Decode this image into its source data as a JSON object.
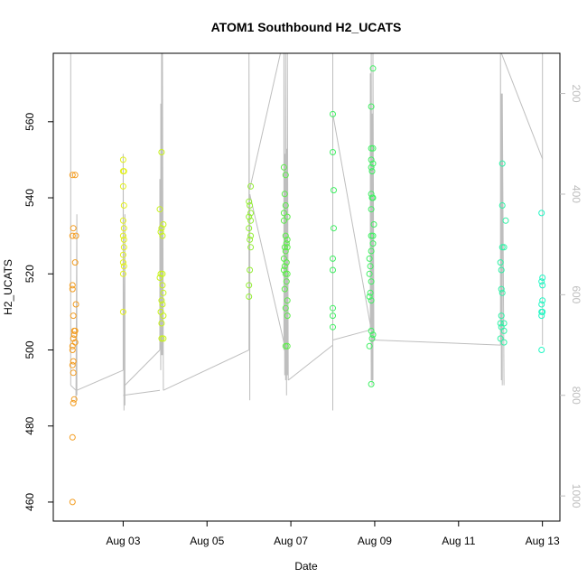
{
  "chart_data": {
    "type": "scatter",
    "title": "ATOM1 Southbound H2_UCATS",
    "xlabel": "Date",
    "ylabel": "H2_UCATS",
    "xlim": [
      "2016-08-01T08:00",
      "2016-08-13T10:00"
    ],
    "ylim": [
      455,
      578
    ],
    "y2lim": [
      1050,
      120
    ],
    "x_ticks": [
      {
        "date": "2016-08-03T00:00",
        "label": "Aug 03"
      },
      {
        "date": "2016-08-05T00:00",
        "label": "Aug 05"
      },
      {
        "date": "2016-08-07T00:00",
        "label": "Aug 07"
      },
      {
        "date": "2016-08-09T00:00",
        "label": "Aug 09"
      },
      {
        "date": "2016-08-11T00:00",
        "label": "Aug 11"
      },
      {
        "date": "2016-08-13T00:00",
        "label": "Aug 13"
      }
    ],
    "y_ticks": [
      460,
      480,
      500,
      520,
      540,
      560
    ],
    "y2_ticks": [
      200,
      400,
      600,
      800,
      1000
    ],
    "grid": false,
    "colors": {
      "pressure_line": "#bebebe",
      "axis": "#000000",
      "right_axis": "#bdbdbd",
      "flight1": "#f39c1f",
      "flight2": "#e3f21a",
      "flight3": "#c7f21a",
      "flight4": "#95ee36",
      "flight5": "#5cee4a",
      "flight6": "#3ff062",
      "flight7": "#2ff2a6",
      "flight8": "#1ff7c3"
    },
    "series": [
      {
        "color_key": "flight1",
        "points": [
          [
            "2016-08-01T19:00",
            546
          ],
          [
            "2016-08-01T20:30",
            546
          ],
          [
            "2016-08-01T19:30",
            532
          ],
          [
            "2016-08-01T19:00",
            530
          ],
          [
            "2016-08-01T21:00",
            530
          ],
          [
            "2016-08-01T20:30",
            523
          ],
          [
            "2016-08-01T19:00",
            517
          ],
          [
            "2016-08-01T19:00",
            516
          ],
          [
            "2016-08-01T21:00",
            512
          ],
          [
            "2016-08-01T19:30",
            509
          ],
          [
            "2016-08-01T20:00",
            505
          ],
          [
            "2016-08-01T20:30",
            505
          ],
          [
            "2016-08-01T20:00",
            504
          ],
          [
            "2016-08-01T19:30",
            503
          ],
          [
            "2016-08-01T20:30",
            502
          ],
          [
            "2016-08-01T19:00",
            501
          ],
          [
            "2016-08-01T19:00",
            500
          ],
          [
            "2016-08-01T19:30",
            497
          ],
          [
            "2016-08-01T19:00",
            496
          ],
          [
            "2016-08-01T19:30",
            494
          ],
          [
            "2016-08-01T20:00",
            487
          ],
          [
            "2016-08-01T19:30",
            486
          ],
          [
            "2016-08-01T19:00",
            477
          ],
          [
            "2016-08-01T19:00",
            460
          ]
        ]
      },
      {
        "color_key": "flight2",
        "points": [
          [
            "2016-08-03T00:00",
            550
          ],
          [
            "2016-08-03T00:30",
            547
          ],
          [
            "2016-08-03T00:00",
            547
          ],
          [
            "2016-08-03T00:00",
            543
          ],
          [
            "2016-08-03T00:30",
            538
          ],
          [
            "2016-08-03T00:00",
            534
          ],
          [
            "2016-08-03T00:30",
            532
          ],
          [
            "2016-08-03T00:00",
            530
          ],
          [
            "2016-08-03T00:30",
            529
          ],
          [
            "2016-08-03T00:30",
            527
          ],
          [
            "2016-08-03T00:00",
            525
          ],
          [
            "2016-08-03T00:00",
            523
          ],
          [
            "2016-08-03T00:30",
            522
          ],
          [
            "2016-08-03T00:00",
            520
          ],
          [
            "2016-08-03T00:00",
            510
          ]
        ]
      },
      {
        "color_key": "flight3",
        "points": [
          [
            "2016-08-03T22:00",
            552
          ],
          [
            "2016-08-03T21:00",
            537
          ],
          [
            "2016-08-03T23:00",
            533
          ],
          [
            "2016-08-03T22:00",
            532
          ],
          [
            "2016-08-03T21:30",
            531
          ],
          [
            "2016-08-03T22:30",
            530
          ],
          [
            "2016-08-03T21:30",
            520
          ],
          [
            "2016-08-03T22:30",
            520
          ],
          [
            "2016-08-03T21:00",
            519
          ],
          [
            "2016-08-03T22:30",
            517
          ],
          [
            "2016-08-03T23:00",
            515
          ],
          [
            "2016-08-03T22:00",
            513
          ],
          [
            "2016-08-03T22:30",
            512
          ],
          [
            "2016-08-03T21:30",
            510
          ],
          [
            "2016-08-03T23:00",
            509
          ],
          [
            "2016-08-03T22:00",
            507
          ],
          [
            "2016-08-03T22:00",
            503
          ],
          [
            "2016-08-03T23:00",
            503
          ]
        ]
      },
      {
        "color_key": "flight4",
        "points": [
          [
            "2016-08-06T01:00",
            543
          ],
          [
            "2016-08-06T00:00",
            539
          ],
          [
            "2016-08-06T00:30",
            538
          ],
          [
            "2016-08-06T01:00",
            536
          ],
          [
            "2016-08-06T00:00",
            535
          ],
          [
            "2016-08-06T01:00",
            534
          ],
          [
            "2016-08-06T00:00",
            532
          ],
          [
            "2016-08-06T01:00",
            530
          ],
          [
            "2016-08-06T00:30",
            529
          ],
          [
            "2016-08-06T01:00",
            527
          ],
          [
            "2016-08-06T00:30",
            521
          ],
          [
            "2016-08-06T00:00",
            517
          ],
          [
            "2016-08-06T00:00",
            514
          ]
        ]
      },
      {
        "color_key": "flight5",
        "points": [
          [
            "2016-08-06T20:00",
            548
          ],
          [
            "2016-08-06T21:00",
            546
          ],
          [
            "2016-08-06T20:30",
            541
          ],
          [
            "2016-08-06T21:00",
            538
          ],
          [
            "2016-08-06T20:00",
            536
          ],
          [
            "2016-08-06T22:00",
            535
          ],
          [
            "2016-08-06T20:00",
            534
          ],
          [
            "2016-08-06T21:00",
            530
          ],
          [
            "2016-08-06T22:00",
            529
          ],
          [
            "2016-08-06T21:30",
            528
          ],
          [
            "2016-08-06T22:00",
            527
          ],
          [
            "2016-08-06T20:30",
            527
          ],
          [
            "2016-08-06T21:00",
            526
          ],
          [
            "2016-08-06T20:00",
            524
          ],
          [
            "2016-08-06T21:30",
            523
          ],
          [
            "2016-08-06T20:30",
            522
          ],
          [
            "2016-08-06T20:00",
            521
          ],
          [
            "2016-08-06T21:00",
            520
          ],
          [
            "2016-08-06T22:00",
            520
          ],
          [
            "2016-08-06T21:30",
            518
          ],
          [
            "2016-08-06T20:30",
            516
          ],
          [
            "2016-08-06T22:00",
            513
          ],
          [
            "2016-08-06T21:00",
            511
          ],
          [
            "2016-08-06T22:00",
            509
          ],
          [
            "2016-08-06T22:00",
            501
          ],
          [
            "2016-08-06T21:00",
            501
          ]
        ]
      },
      {
        "color_key": "flight6",
        "points": [
          [
            "2016-08-08T00:00",
            562
          ],
          [
            "2016-08-08T00:00",
            552
          ],
          [
            "2016-08-08T00:30",
            542
          ],
          [
            "2016-08-08T00:30",
            532
          ],
          [
            "2016-08-08T00:00",
            524
          ],
          [
            "2016-08-08T00:00",
            521
          ],
          [
            "2016-08-08T00:00",
            511
          ],
          [
            "2016-08-08T00:00",
            509
          ],
          [
            "2016-08-08T00:00",
            506
          ],
          [
            "2016-08-08T23:00",
            574
          ],
          [
            "2016-08-08T22:00",
            564
          ],
          [
            "2016-08-08T22:00",
            553
          ],
          [
            "2016-08-08T23:00",
            553
          ],
          [
            "2016-08-08T22:00",
            550
          ],
          [
            "2016-08-08T23:00",
            549
          ],
          [
            "2016-08-08T22:00",
            548
          ],
          [
            "2016-08-08T22:30",
            547
          ],
          [
            "2016-08-08T22:00",
            541
          ],
          [
            "2016-08-08T23:00",
            540
          ],
          [
            "2016-08-08T22:30",
            540
          ],
          [
            "2016-08-08T22:00",
            537
          ],
          [
            "2016-08-08T23:30",
            533
          ],
          [
            "2016-08-08T22:00",
            530
          ],
          [
            "2016-08-08T23:00",
            530
          ],
          [
            "2016-08-08T23:00",
            528
          ],
          [
            "2016-08-08T22:00",
            526
          ],
          [
            "2016-08-08T21:00",
            524
          ],
          [
            "2016-08-08T21:30",
            522
          ],
          [
            "2016-08-08T21:00",
            520
          ],
          [
            "2016-08-08T22:00",
            518
          ],
          [
            "2016-08-08T21:30",
            515
          ],
          [
            "2016-08-08T21:00",
            514
          ],
          [
            "2016-08-08T22:00",
            513
          ],
          [
            "2016-08-08T22:00",
            505
          ],
          [
            "2016-08-08T23:00",
            504
          ],
          [
            "2016-08-08T22:30",
            503
          ],
          [
            "2016-08-08T21:00",
            501
          ],
          [
            "2016-08-08T22:00",
            491
          ]
        ]
      },
      {
        "color_key": "flight7",
        "points": [
          [
            "2016-08-12T01:00",
            549
          ],
          [
            "2016-08-12T01:00",
            538
          ],
          [
            "2016-08-12T03:00",
            534
          ],
          [
            "2016-08-12T01:00",
            527
          ],
          [
            "2016-08-12T02:00",
            527
          ],
          [
            "2016-08-12T00:00",
            523
          ],
          [
            "2016-08-12T00:30",
            521
          ],
          [
            "2016-08-12T00:30",
            516
          ],
          [
            "2016-08-12T01:00",
            515
          ],
          [
            "2016-08-12T00:30",
            509
          ],
          [
            "2016-08-12T00:00",
            507
          ],
          [
            "2016-08-12T00:30",
            506
          ],
          [
            "2016-08-12T02:00",
            507
          ],
          [
            "2016-08-12T02:00",
            505
          ],
          [
            "2016-08-12T00:00",
            503
          ],
          [
            "2016-08-12T02:00",
            502
          ]
        ]
      },
      {
        "color_key": "flight8",
        "points": [
          [
            "2016-08-12T23:30",
            536
          ],
          [
            "2016-08-13T00:00",
            519
          ],
          [
            "2016-08-12T23:30",
            518
          ],
          [
            "2016-08-13T00:00",
            517
          ],
          [
            "2016-08-13T00:00",
            513
          ],
          [
            "2016-08-12T23:30",
            512
          ],
          [
            "2016-08-12T23:30",
            510
          ],
          [
            "2016-08-13T00:00",
            510
          ],
          [
            "2016-08-12T23:30",
            509
          ],
          [
            "2016-08-12T23:30",
            500
          ]
        ]
      }
    ],
    "pressure_segments": [
      [
        [
          "2016-08-01T18:00",
          780
        ],
        [
          "2016-08-01T18:00",
          120
        ]
      ],
      [
        [
          "2016-08-01T18:00",
          780
        ],
        [
          "2016-08-01T21:00",
          790
        ]
      ],
      [
        [
          "2016-08-01T21:00",
          790
        ],
        [
          "2016-08-01T21:00",
          810
        ],
        [
          "2016-08-01T21:30",
          440
        ],
        [
          "2016-08-01T21:30",
          800
        ]
      ],
      [
        [
          "2016-08-01T21:30",
          790
        ],
        [
          "2016-08-03T00:00",
          750
        ]
      ],
      [
        [
          "2016-08-03T00:00",
          750
        ],
        [
          "2016-08-03T00:00",
          320
        ],
        [
          "2016-08-03T00:30",
          830
        ],
        [
          "2016-08-03T01:00",
          440
        ],
        [
          "2016-08-03T01:00",
          820
        ]
      ],
      [
        [
          "2016-08-03T00:00",
          800
        ],
        [
          "2016-08-03T21:00",
          790
        ]
      ],
      [
        [
          "2016-08-03T01:00",
          780
        ],
        [
          "2016-08-03T21:00",
          710
        ]
      ],
      [
        [
          "2016-08-03T21:00",
          710
        ],
        [
          "2016-08-03T21:00",
          370
        ],
        [
          "2016-08-03T21:30",
          750
        ],
        [
          "2016-08-03T21:30",
          220
        ],
        [
          "2016-08-03T22:00",
          720
        ],
        [
          "2016-08-03T22:00",
          120
        ],
        [
          "2016-08-03T22:30",
          720
        ],
        [
          "2016-08-03T22:30",
          120
        ],
        [
          "2016-08-03T23:00",
          790
        ]
      ],
      [
        [
          "2016-08-03T23:00",
          790
        ],
        [
          "2016-08-06T00:00",
          710
        ]
      ],
      [
        [
          "2016-08-06T00:00",
          710
        ],
        [
          "2016-08-06T00:00",
          120
        ],
        [
          "2016-08-06T00:30",
          810
        ],
        [
          "2016-08-06T00:30",
          400
        ]
      ],
      [
        [
          "2016-08-06T00:30",
          390
        ],
        [
          "2016-08-06T18:00",
          120
        ]
      ],
      [
        [
          "2016-08-06T00:30",
          400
        ],
        [
          "2016-08-06T21:00",
          710
        ]
      ],
      [
        [
          "2016-08-06T20:00",
          710
        ],
        [
          "2016-08-06T20:00",
          120
        ],
        [
          "2016-08-06T20:30",
          760
        ],
        [
          "2016-08-06T20:30",
          320
        ],
        [
          "2016-08-06T21:00",
          770
        ],
        [
          "2016-08-06T21:00",
          120
        ],
        [
          "2016-08-06T21:30",
          800
        ],
        [
          "2016-08-06T21:30",
          310
        ],
        [
          "2016-08-06T22:00",
          760
        ],
        [
          "2016-08-06T22:00",
          120
        ],
        [
          "2016-08-06T22:30",
          770
        ]
      ],
      [
        [
          "2016-08-06T22:30",
          770
        ],
        [
          "2016-08-08T00:00",
          700
        ]
      ],
      [
        [
          "2016-08-08T00:00",
          700
        ],
        [
          "2016-08-08T00:00",
          120
        ],
        [
          "2016-08-08T00:00",
          830
        ],
        [
          "2016-08-08T00:00",
          690
        ]
      ],
      [
        [
          "2016-08-08T00:00",
          690
        ],
        [
          "2016-08-08T21:30",
          670
        ]
      ],
      [
        [
          "2016-08-08T00:00",
          240
        ],
        [
          "2016-08-08T21:30",
          660
        ]
      ],
      [
        [
          "2016-08-08T21:30",
          670
        ],
        [
          "2016-08-08T21:30",
          160
        ],
        [
          "2016-08-08T22:00",
          770
        ],
        [
          "2016-08-08T22:00",
          120
        ],
        [
          "2016-08-08T22:30",
          780
        ],
        [
          "2016-08-08T22:30",
          240
        ],
        [
          "2016-08-08T23:00",
          770
        ],
        [
          "2016-08-08T23:00",
          120
        ],
        [
          "2016-08-08T23:30",
          690
        ]
      ],
      [
        [
          "2016-08-08T23:30",
          690
        ],
        [
          "2016-08-12T00:00",
          700
        ]
      ],
      [
        [
          "2016-08-12T00:00",
          700
        ],
        [
          "2016-08-12T00:00",
          120
        ],
        [
          "2016-08-12T00:30",
          770
        ],
        [
          "2016-08-12T00:30",
          200
        ],
        [
          "2016-08-12T01:00",
          780
        ],
        [
          "2016-08-12T01:00",
          200
        ],
        [
          "2016-08-12T02:00",
          780
        ]
      ],
      [
        [
          "2016-08-12T00:30",
          120
        ],
        [
          "2016-08-13T00:00",
          330
        ]
      ],
      [
        [
          "2016-08-13T00:00",
          120
        ],
        [
          "2016-08-13T00:00",
          700
        ]
      ]
    ]
  }
}
